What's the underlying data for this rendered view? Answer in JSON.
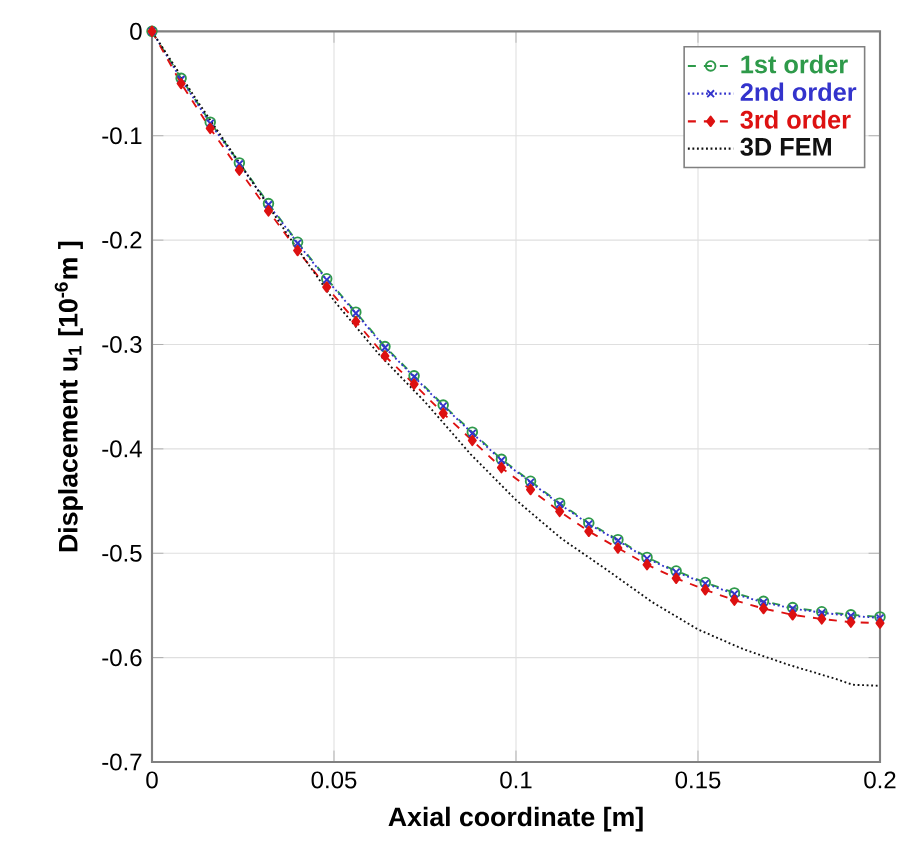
{
  "chart_data": {
    "type": "line",
    "xlabel": "Axial coordinate [m]",
    "ylabel": "Displacement  u$_{1}$  [10$^{-6}$m ]",
    "xlim": [
      0,
      0.2
    ],
    "ylim": [
      -0.7,
      0
    ],
    "xticks": [
      0,
      0.05,
      0.1,
      0.15,
      0.2
    ],
    "yticks": [
      0,
      -0.1,
      -0.2,
      -0.3,
      -0.4,
      -0.5,
      -0.6,
      -0.7
    ],
    "grid": true,
    "legend": "top right",
    "series": [
      {
        "name": "1st order",
        "color": "#2e9a4a",
        "marker": "circle",
        "line_style": "dashed",
        "x": [
          0,
          0.008,
          0.016,
          0.024,
          0.032,
          0.04,
          0.048,
          0.056,
          0.064,
          0.072,
          0.08,
          0.088,
          0.096,
          0.104,
          0.112,
          0.12,
          0.128,
          0.136,
          0.144,
          0.152,
          0.16,
          0.168,
          0.176,
          0.184,
          0.192,
          0.2
        ],
        "values": [
          0,
          -0.045,
          -0.087,
          -0.126,
          -0.165,
          -0.202,
          -0.237,
          -0.269,
          -0.302,
          -0.33,
          -0.358,
          -0.384,
          -0.41,
          -0.431,
          -0.452,
          -0.471,
          -0.487,
          -0.504,
          -0.517,
          -0.528,
          -0.538,
          -0.546,
          -0.552,
          -0.556,
          -0.559,
          -0.561
        ]
      },
      {
        "name": "2nd order",
        "color": "#3333cc",
        "marker": "cross",
        "line_style": "dotted",
        "x": [
          0,
          0.008,
          0.016,
          0.024,
          0.032,
          0.04,
          0.048,
          0.056,
          0.064,
          0.072,
          0.08,
          0.088,
          0.096,
          0.104,
          0.112,
          0.12,
          0.128,
          0.136,
          0.144,
          0.152,
          0.16,
          0.168,
          0.176,
          0.184,
          0.192,
          0.2
        ],
        "values": [
          0,
          -0.046,
          -0.088,
          -0.127,
          -0.166,
          -0.203,
          -0.238,
          -0.27,
          -0.303,
          -0.331,
          -0.359,
          -0.385,
          -0.411,
          -0.432,
          -0.453,
          -0.472,
          -0.488,
          -0.505,
          -0.518,
          -0.529,
          -0.539,
          -0.547,
          -0.553,
          -0.557,
          -0.56,
          -0.562
        ]
      },
      {
        "name": "3rd order",
        "color": "#dd1111",
        "marker": "diamond",
        "line_style": "dashed",
        "x": [
          0,
          0.008,
          0.016,
          0.024,
          0.032,
          0.04,
          0.048,
          0.056,
          0.064,
          0.072,
          0.08,
          0.088,
          0.096,
          0.104,
          0.112,
          0.12,
          0.128,
          0.136,
          0.144,
          0.152,
          0.16,
          0.168,
          0.176,
          0.184,
          0.192,
          0.2
        ],
        "values": [
          0,
          -0.05,
          -0.093,
          -0.133,
          -0.172,
          -0.21,
          -0.245,
          -0.278,
          -0.311,
          -0.338,
          -0.366,
          -0.392,
          -0.418,
          -0.439,
          -0.46,
          -0.479,
          -0.495,
          -0.511,
          -0.524,
          -0.535,
          -0.545,
          -0.553,
          -0.559,
          -0.563,
          -0.566,
          -0.567
        ]
      },
      {
        "name": "3D FEM",
        "color": "#111111",
        "marker": "none",
        "line_style": "dotted",
        "x": [
          0,
          0.0125,
          0.025,
          0.0375,
          0.05,
          0.0625,
          0.075,
          0.0875,
          0.1,
          0.1125,
          0.125,
          0.1375,
          0.15,
          0.1625,
          0.175,
          0.1875,
          0.1925,
          0.2
        ],
        "values": [
          0,
          -0.067,
          -0.131,
          -0.196,
          -0.258,
          -0.31,
          -0.355,
          -0.405,
          -0.449,
          -0.486,
          -0.516,
          -0.547,
          -0.573,
          -0.592,
          -0.607,
          -0.62,
          -0.626,
          -0.627
        ]
      }
    ]
  }
}
